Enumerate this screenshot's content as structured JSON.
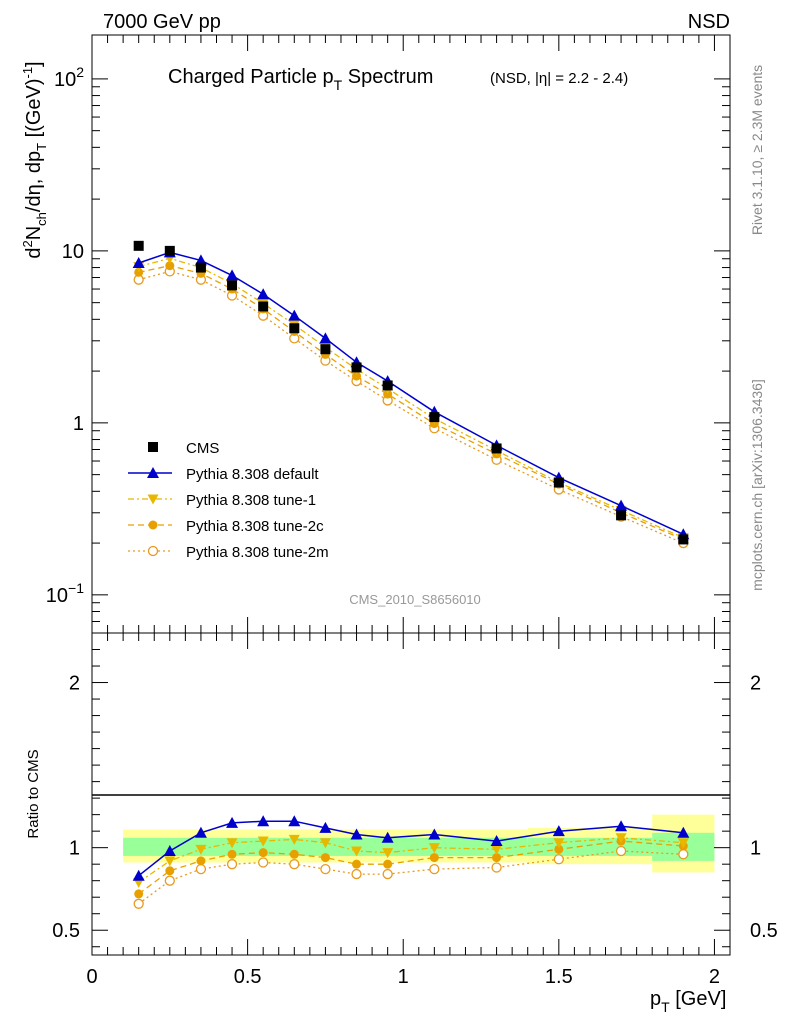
{
  "header": {
    "left": "7000 GeV pp",
    "right": "NSD"
  },
  "title": {
    "main": "Charged Particle p",
    "main_sub": "T",
    "main_tail": " Spectrum",
    "qualifier": "(NSD, |η| = 2.2 - 2.4)"
  },
  "side_labels": {
    "rivet": "Rivet 3.1.10, ≥ 2.3M events",
    "mcplots": "mcplots.cern.ch [arXiv:1306.3436]"
  },
  "watermark": "CMS_2010_S8656010",
  "colors": {
    "cms": "#000000",
    "default": "#0000cc",
    "tune1": "#e8b800",
    "tune2c": "#e8a000",
    "tune2m": "#e89a20",
    "band_inner": "#99ff99",
    "band_outer": "#ffff99"
  },
  "chart_data": [
    {
      "type": "line",
      "panel": "main",
      "ylabel": "d²N_ch/dη dp_T [(GeV)⁻¹]",
      "yscale": "log",
      "xlim": [
        0,
        2.05
      ],
      "ylim": [
        0.06,
        180
      ],
      "yticks": [
        {
          "value": 0.1,
          "label": "10",
          "sup": "−1"
        },
        {
          "value": 1,
          "label": "1",
          "sup": ""
        },
        {
          "value": 10,
          "label": "10",
          "sup": ""
        },
        {
          "value": 100,
          "label": "10",
          "sup": "2"
        }
      ],
      "legend_position": "bottom-left",
      "x": [
        0.15,
        0.25,
        0.35,
        0.45,
        0.55,
        0.65,
        0.75,
        0.85,
        0.95,
        1.1,
        1.3,
        1.5,
        1.7,
        1.9
      ],
      "series": [
        {
          "name": "CMS",
          "style": "data",
          "values": [
            10.7,
            10.0,
            8.0,
            6.3,
            4.75,
            3.55,
            2.68,
            2.1,
            1.65,
            1.08,
            0.71,
            0.45,
            0.29,
            0.21
          ]
        },
        {
          "name": "Pythia 8.308 default",
          "style": "default",
          "values": [
            8.5,
            9.8,
            8.8,
            7.2,
            5.6,
            4.2,
            3.1,
            2.25,
            1.75,
            1.16,
            0.74,
            0.48,
            0.33,
            0.225
          ]
        },
        {
          "name": "Pythia 8.308 tune-1",
          "style": "tune1",
          "values": [
            8.1,
            9.05,
            8.0,
            6.45,
            4.95,
            3.72,
            2.75,
            2.05,
            1.58,
            1.06,
            0.69,
            0.45,
            0.31,
            0.215
          ]
        },
        {
          "name": "Pythia 8.308 tune-2c",
          "style": "tune2c",
          "values": [
            7.5,
            8.2,
            7.4,
            6.0,
            4.6,
            3.4,
            2.5,
            1.87,
            1.47,
            0.99,
            0.66,
            0.44,
            0.3,
            0.21
          ]
        },
        {
          "name": "Pythia 8.308 tune-2m",
          "style": "tune2m",
          "values": [
            6.8,
            7.6,
            6.8,
            5.5,
            4.2,
            3.1,
            2.3,
            1.75,
            1.35,
            0.93,
            0.61,
            0.41,
            0.285,
            0.2
          ]
        }
      ]
    },
    {
      "type": "line",
      "panel": "ratio",
      "xlabel": "p_T [GeV]",
      "ylabel": "Ratio to CMS",
      "xlim": [
        0,
        2.05
      ],
      "ylim": [
        0.35,
        2.3
      ],
      "yticks": [
        0.5,
        1,
        2
      ],
      "xticks": [
        0,
        0.5,
        1,
        1.5,
        2
      ],
      "x": [
        0.15,
        0.25,
        0.35,
        0.45,
        0.55,
        0.65,
        0.75,
        0.85,
        0.95,
        1.1,
        1.3,
        1.5,
        1.7,
        1.9
      ],
      "bands": [
        {
          "x0": 0.1,
          "x1": 1.4,
          "inner": [
            0.95,
            1.06
          ],
          "outer": [
            0.91,
            1.11
          ]
        },
        {
          "x0": 1.4,
          "x1": 1.8,
          "inner": [
            0.95,
            1.06
          ],
          "outer": [
            0.9,
            1.12
          ]
        },
        {
          "x0": 1.8,
          "x1": 2.0,
          "inner": [
            0.92,
            1.09
          ],
          "outer": [
            0.85,
            1.2
          ]
        }
      ],
      "series": [
        {
          "name": "Pythia 8.308 default",
          "style": "default",
          "values": [
            0.83,
            0.98,
            1.09,
            1.15,
            1.16,
            1.16,
            1.12,
            1.08,
            1.06,
            1.08,
            1.04,
            1.1,
            1.13,
            1.09
          ]
        },
        {
          "name": "Pythia 8.308 tune-1",
          "style": "tune1",
          "values": [
            0.79,
            0.92,
            0.99,
            1.03,
            1.04,
            1.05,
            1.03,
            0.98,
            0.97,
            1.0,
            0.99,
            1.03,
            1.06,
            1.03
          ]
        },
        {
          "name": "Pythia 8.308 tune-2c",
          "style": "tune2c",
          "values": [
            0.72,
            0.86,
            0.92,
            0.96,
            0.97,
            0.96,
            0.94,
            0.9,
            0.9,
            0.94,
            0.94,
            0.99,
            1.04,
            1.01
          ]
        },
        {
          "name": "Pythia 8.308 tune-2m",
          "style": "tune2m",
          "values": [
            0.66,
            0.8,
            0.87,
            0.9,
            0.91,
            0.9,
            0.87,
            0.84,
            0.84,
            0.87,
            0.88,
            0.93,
            0.98,
            0.96
          ]
        }
      ]
    }
  ]
}
